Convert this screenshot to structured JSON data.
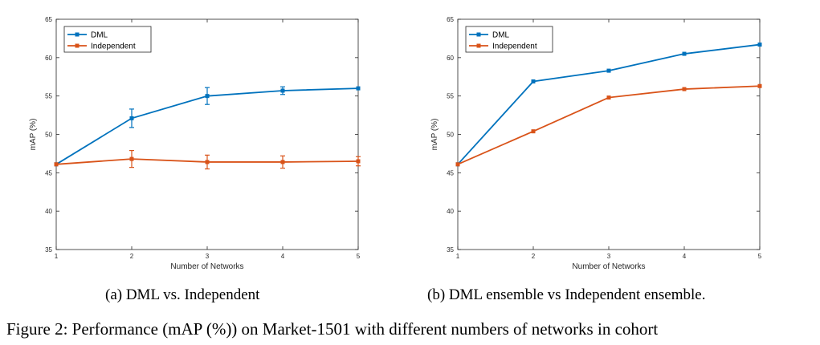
{
  "chart_data": [
    {
      "type": "line",
      "xlabel": "Number of Networks",
      "ylabel": "mAP (%)",
      "xlim": [
        1,
        5
      ],
      "ylim": [
        35,
        65
      ],
      "x": [
        1,
        2,
        3,
        4,
        5
      ],
      "x_ticks": [
        "1",
        "2",
        "3",
        "4",
        "5"
      ],
      "y_ticks": [
        "35",
        "40",
        "45",
        "50",
        "55",
        "60",
        "65"
      ],
      "grid": false,
      "legend": "top-left",
      "series": [
        {
          "name": "DML",
          "color": "#0072BD",
          "values": [
            46.1,
            52.1,
            55.0,
            55.7,
            56.0
          ],
          "errors": [
            0,
            1.2,
            1.1,
            0.5,
            0
          ]
        },
        {
          "name": "Independent",
          "color": "#D95319",
          "values": [
            46.1,
            46.8,
            46.4,
            46.4,
            46.5
          ],
          "errors": [
            0,
            1.1,
            0.9,
            0.8,
            0.6
          ]
        }
      ]
    },
    {
      "type": "line",
      "xlabel": "Number of Networks",
      "ylabel": "mAP (%)",
      "xlim": [
        1,
        5
      ],
      "ylim": [
        35,
        65
      ],
      "x": [
        1,
        2,
        3,
        4,
        5
      ],
      "x_ticks": [
        "1",
        "2",
        "3",
        "4",
        "5"
      ],
      "y_ticks": [
        "35",
        "40",
        "45",
        "50",
        "55",
        "60",
        "65"
      ],
      "grid": false,
      "legend": "top-left",
      "series": [
        {
          "name": "DML",
          "color": "#0072BD",
          "values": [
            46.1,
            56.9,
            58.3,
            60.5,
            61.7
          ]
        },
        {
          "name": "Independent",
          "color": "#D95319",
          "values": [
            46.1,
            50.4,
            54.8,
            55.9,
            56.3
          ]
        }
      ]
    }
  ],
  "captions": {
    "a": "(a) DML vs.  Independent",
    "b": "(b) DML ensemble vs Independent ensemble.",
    "figure": "Figure 2: Performance (mAP (%)) on Market-1501 with different numbers of networks in cohort"
  }
}
